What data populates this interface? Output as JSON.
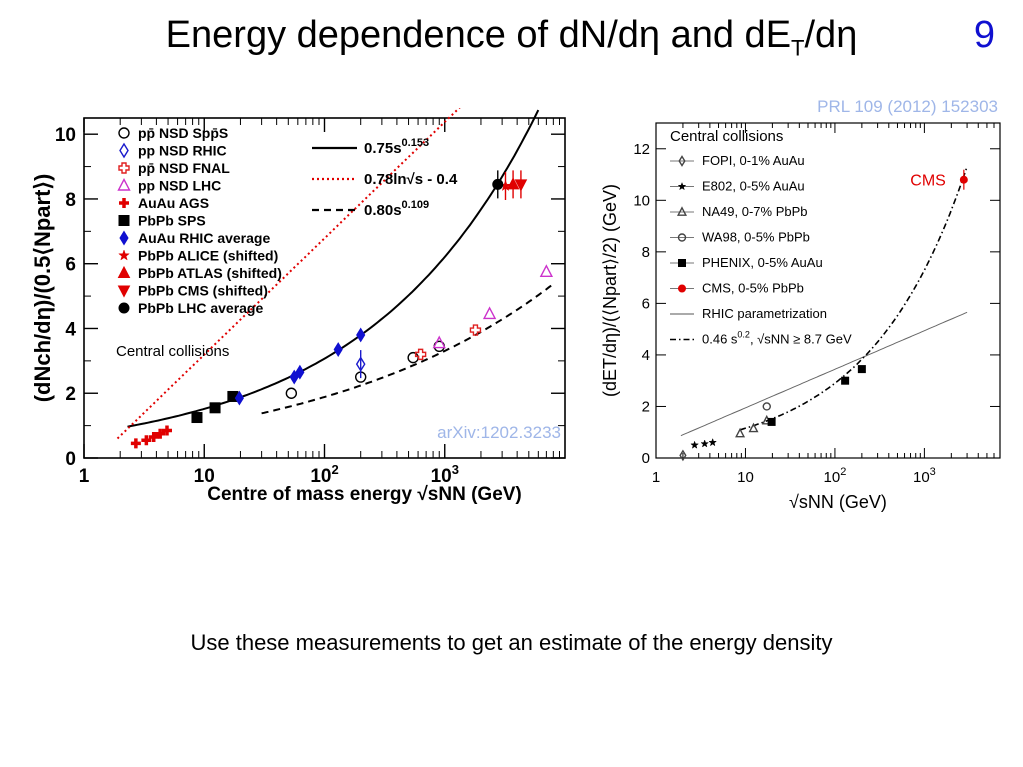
{
  "slide": {
    "title_main": "Energy dependence of dN/dη and dE",
    "title_sub": "T",
    "title_tail": "/dη",
    "number": "9",
    "caption": "Use these measurements to get an estimate of the energy density"
  },
  "chart_data": [
    {
      "type": "scatter",
      "reference": "arXiv:1202.3233",
      "annotation": "Central collisions",
      "xlabel": "Centre of mass energy √sNN (GeV)",
      "ylabel": "(dNch/dη)/(0.5⟨Npart⟩)",
      "xscale": "log",
      "xlim": [
        1,
        10000
      ],
      "ylim": [
        0,
        10.5
      ],
      "x_ticks": [
        "1",
        "10",
        "10²",
        "10³"
      ],
      "y_ticks": [
        0,
        2,
        4,
        6,
        8,
        10
      ],
      "grid": false,
      "legend_position": "top-left",
      "series": [
        {
          "name": "pp̄ NSD Spp̄S",
          "marker": "open-circle",
          "color": "#000000",
          "points": [
            [
              53,
              2.0
            ],
            [
              200,
              2.5
            ],
            [
              546,
              3.1
            ],
            [
              900,
              3.45
            ]
          ]
        },
        {
          "name": "pp NSD RHIC",
          "marker": "open-diamond",
          "color": "#1a1acc",
          "points": [
            [
              200,
              2.9
            ]
          ]
        },
        {
          "name": "pp̄ NSD FNAL",
          "marker": "open-cross",
          "color": "#e02020",
          "points": [
            [
              630,
              3.2
            ],
            [
              1800,
              3.95
            ]
          ]
        },
        {
          "name": "pp NSD LHC",
          "marker": "open-triangle",
          "color": "#cc33cc",
          "points": [
            [
              900,
              3.55
            ],
            [
              2360,
              4.45
            ],
            [
              7000,
              5.75
            ]
          ]
        },
        {
          "name": "AuAu AGS",
          "marker": "cross",
          "color": "#e00000",
          "points": [
            [
              2.7,
              0.45
            ],
            [
              3.3,
              0.55
            ],
            [
              3.8,
              0.65
            ],
            [
              4.3,
              0.75
            ],
            [
              4.9,
              0.85
            ]
          ]
        },
        {
          "name": "PbPb SPS",
          "marker": "square",
          "color": "#000000",
          "points": [
            [
              8.7,
              1.25
            ],
            [
              12.3,
              1.55
            ],
            [
              17.3,
              1.9
            ]
          ]
        },
        {
          "name": "AuAu RHIC average",
          "marker": "diamond",
          "color": "#1010d0",
          "points": [
            [
              19.6,
              1.85
            ],
            [
              56,
              2.5
            ],
            [
              62.4,
              2.65
            ],
            [
              130,
              3.35
            ],
            [
              200,
              3.8
            ]
          ]
        },
        {
          "name": "PbPb ALICE (shifted)",
          "marker": "star",
          "color": "#e00000",
          "points": [
            [
              3200,
              8.4
            ]
          ]
        },
        {
          "name": "PbPb ATLAS (shifted)",
          "marker": "triangle",
          "color": "#e00000",
          "points": [
            [
              3700,
              8.45
            ]
          ]
        },
        {
          "name": "PbPb CMS (shifted)",
          "marker": "triangle-down",
          "color": "#e00000",
          "points": [
            [
              4300,
              8.45
            ]
          ]
        },
        {
          "name": "PbPb LHC average",
          "marker": "circle",
          "color": "#000000",
          "points": [
            [
              2760,
              8.45
            ]
          ]
        }
      ],
      "curves": [
        {
          "name": "0.75s",
          "exponent": "0.153",
          "style": "solid",
          "color": "#000000"
        },
        {
          "name": "0.78ln√s - 0.4",
          "exponent": "",
          "style": "dotted",
          "color": "#e00000"
        },
        {
          "name": "0.80s",
          "exponent": "0.109",
          "style": "dashed",
          "color": "#000000"
        }
      ]
    },
    {
      "type": "scatter",
      "reference": "PRL 109 (2012) 152303",
      "annotation": "Central collisions",
      "label_cms": "CMS",
      "xlabel": "√sNN (GeV)",
      "ylabel": "(dET/dη)/(⟨Npart⟩/2) (GeV)",
      "xscale": "log",
      "xlim": [
        1,
        7000
      ],
      "ylim": [
        0,
        13
      ],
      "x_ticks": [
        "1",
        "10",
        "10²",
        "10³"
      ],
      "y_ticks": [
        0,
        2,
        4,
        6,
        8,
        10,
        12
      ],
      "grid": false,
      "legend_position": "top-left",
      "series": [
        {
          "name": "FOPI, 0-1% AuAu",
          "marker": "open-diamond",
          "color": "#444444",
          "points": [
            [
              2.0,
              0.1
            ]
          ]
        },
        {
          "name": "E802, 0-5% AuAu",
          "marker": "star",
          "color": "#000000",
          "points": [
            [
              2.7,
              0.5
            ],
            [
              3.5,
              0.55
            ],
            [
              4.3,
              0.6
            ]
          ]
        },
        {
          "name": "NA49, 0-7% PbPb",
          "marker": "open-triangle",
          "color": "#444444",
          "points": [
            [
              8.7,
              0.95
            ],
            [
              12.3,
              1.15
            ],
            [
              17.3,
              1.45
            ]
          ]
        },
        {
          "name": "WA98, 0-5% PbPb",
          "marker": "open-circle",
          "color": "#444444",
          "points": [
            [
              17.3,
              2.0
            ]
          ]
        },
        {
          "name": "PHENIX, 0-5% AuAu",
          "marker": "square",
          "color": "#000000",
          "points": [
            [
              19.6,
              1.4
            ],
            [
              130,
              3.0
            ],
            [
              200,
              3.45
            ]
          ]
        },
        {
          "name": "CMS, 0-5% PbPb",
          "marker": "circle",
          "color": "#e00000",
          "points": [
            [
              2760,
              10.8
            ]
          ]
        }
      ],
      "curves": [
        {
          "name": "RHIC parametrization",
          "style": "solid",
          "color": "#555555"
        },
        {
          "name": "0.46 s",
          "exponent": "0.2",
          "suffix": ", √sNN ≥ 8.7 GeV",
          "style": "dashdot",
          "color": "#000000"
        }
      ]
    }
  ]
}
